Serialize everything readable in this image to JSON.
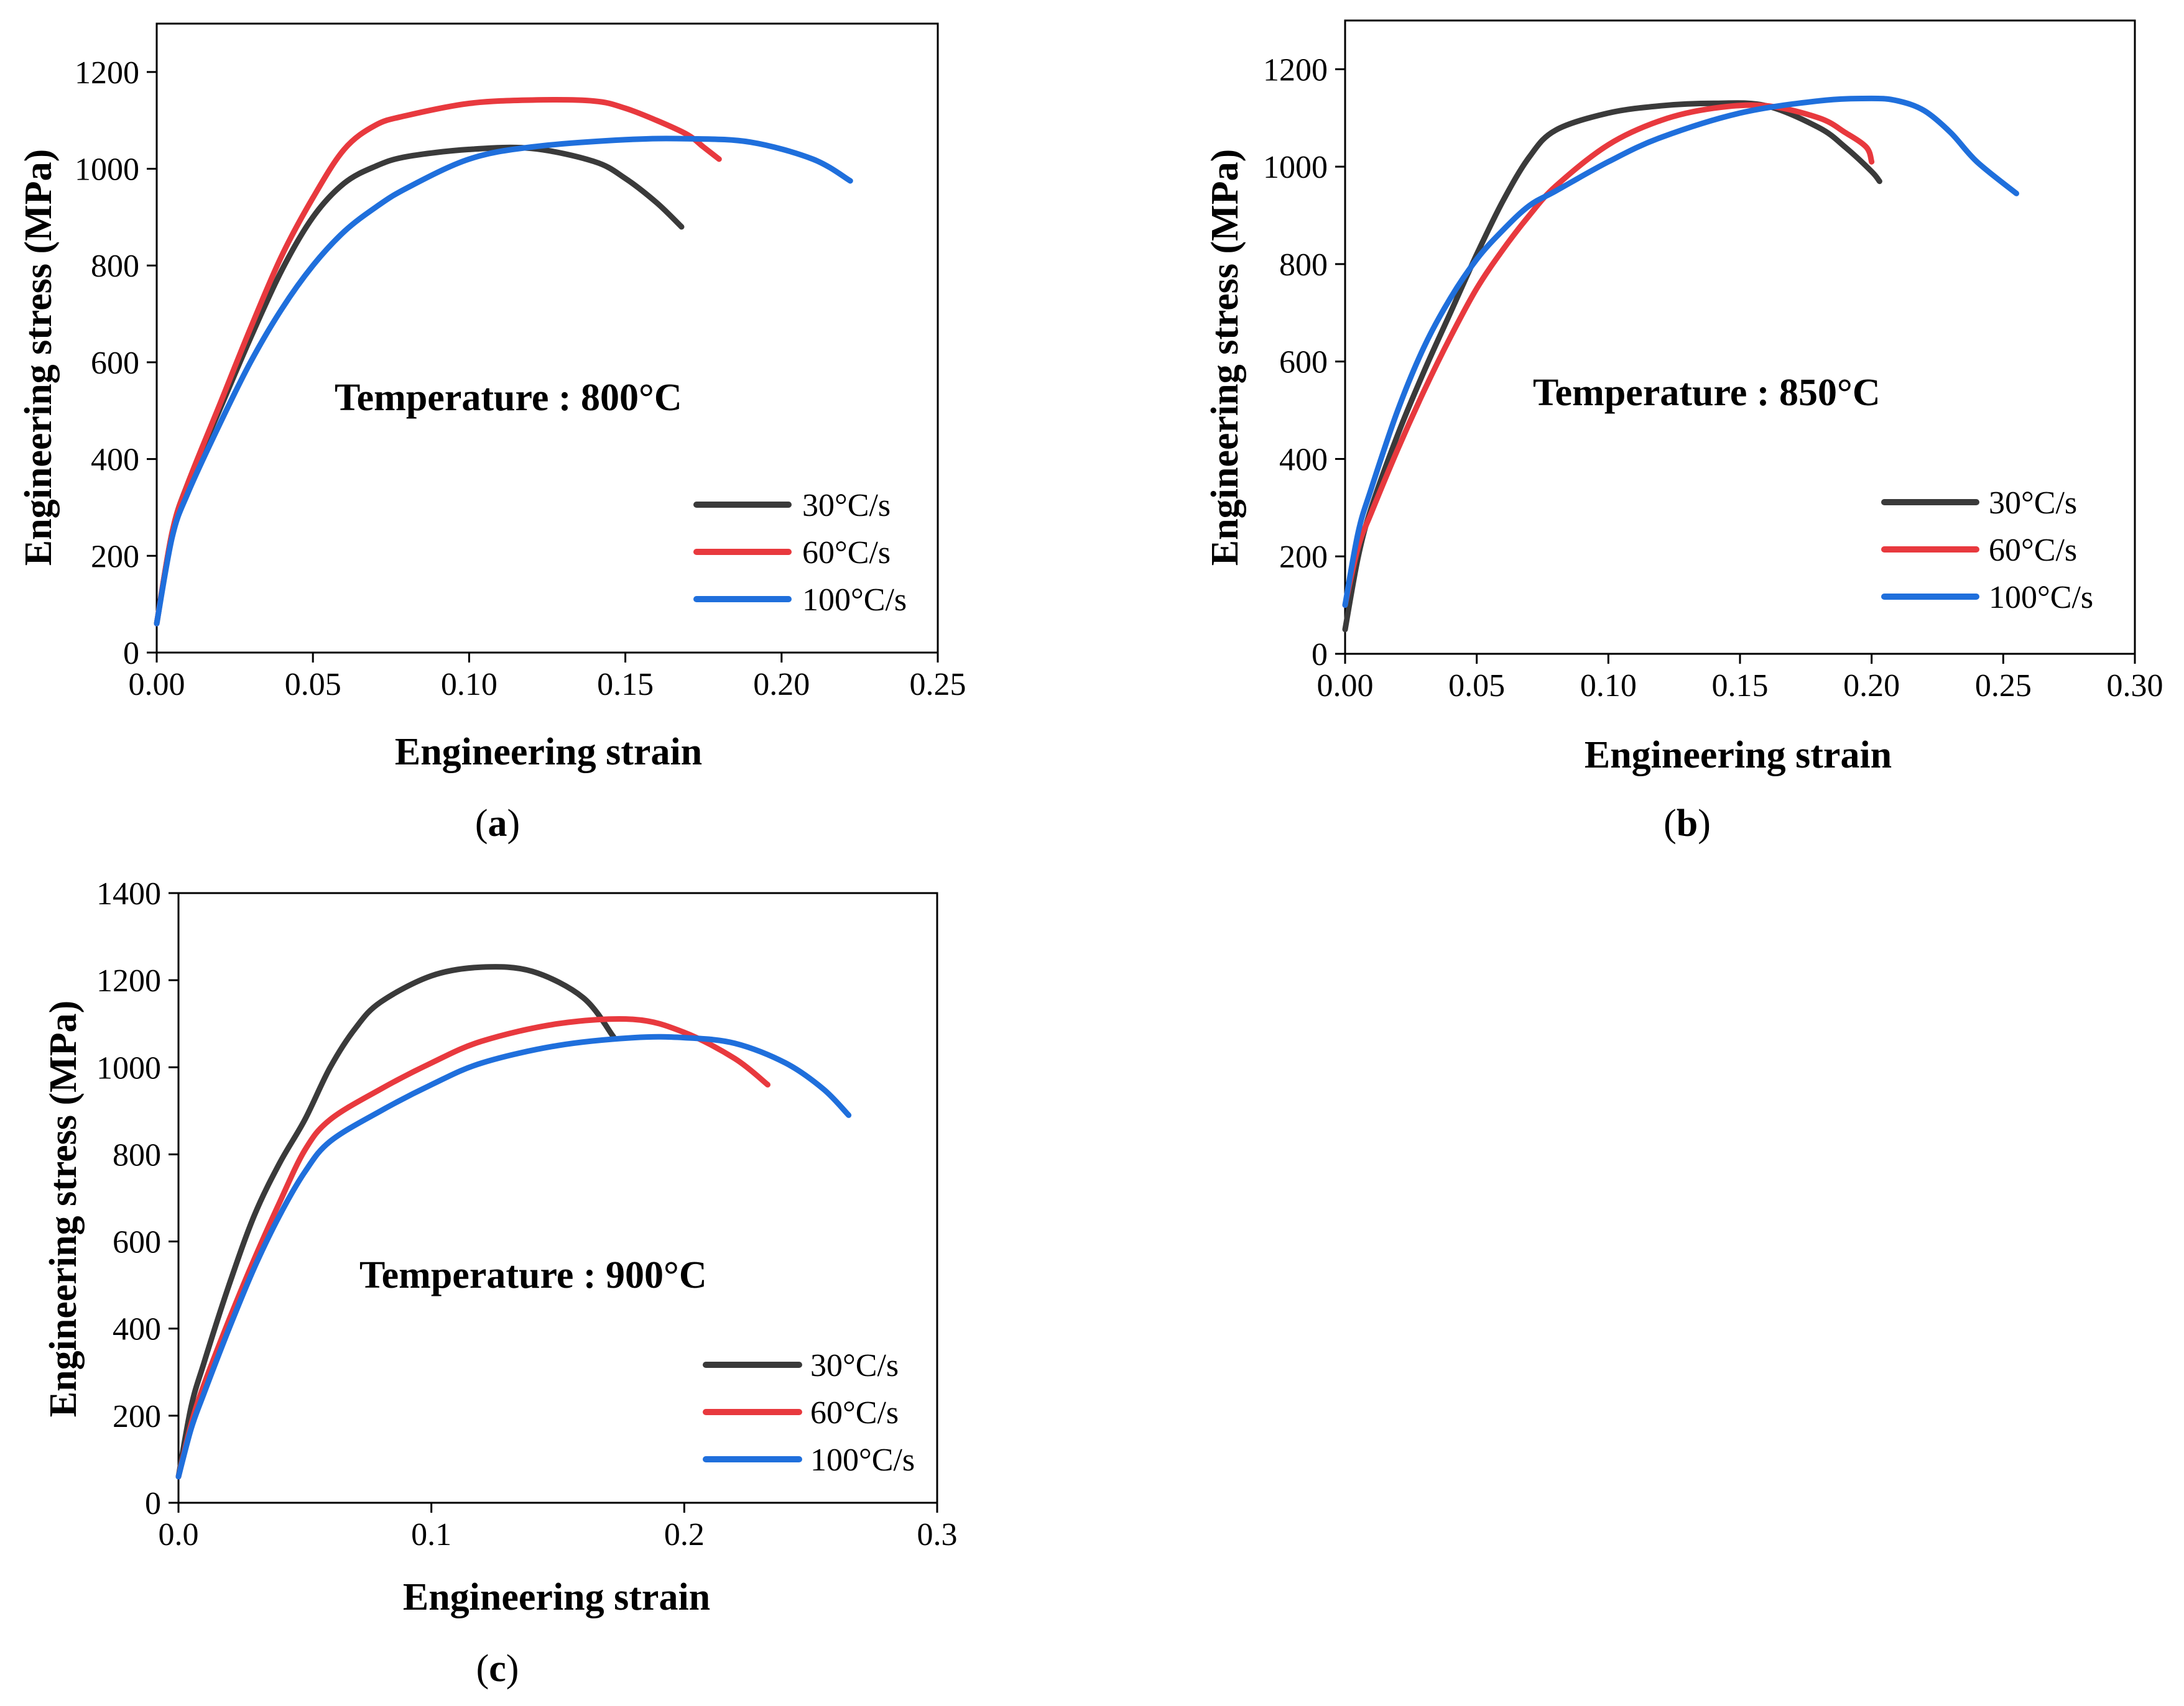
{
  "figure": {
    "panels": [
      {
        "id": "a",
        "label_open": "(",
        "label_letter": "a",
        "label_close": ")"
      },
      {
        "id": "b",
        "label_open": "(",
        "label_letter": "b",
        "label_close": ")"
      },
      {
        "id": "c",
        "label_open": "(",
        "label_letter": "c",
        "label_close": ")"
      }
    ]
  },
  "chart_data": [
    {
      "type": "line",
      "panel": "a",
      "xlabel": "Engineering strain",
      "ylabel": "Engineering stress (MPa)",
      "annotation": "Temperature : 800°C",
      "xlim": [
        0,
        0.25
      ],
      "ylim": [
        0,
        1300
      ],
      "xticks": [
        0.0,
        0.05,
        0.1,
        0.15,
        0.2,
        0.25
      ],
      "xtick_labels": [
        "0.00",
        "0.05",
        "0.10",
        "0.15",
        "0.20",
        "0.25"
      ],
      "yticks": [
        0,
        200,
        400,
        600,
        800,
        1000,
        1200
      ],
      "ytick_labels": [
        "0",
        "200",
        "400",
        "600",
        "800",
        "1000",
        "1200"
      ],
      "grid": false,
      "legend_position": "bottom-right",
      "series": [
        {
          "name": "30°C/s",
          "color": "#3a3a3a",
          "x": [
            0,
            0.005,
            0.01,
            0.02,
            0.03,
            0.04,
            0.05,
            0.06,
            0.07,
            0.08,
            0.1,
            0.12,
            0.14,
            0.15,
            0.16,
            0.168
          ],
          "y": [
            60,
            250,
            350,
            500,
            650,
            790,
            900,
            970,
            1005,
            1025,
            1040,
            1042,
            1015,
            980,
            930,
            880
          ]
        },
        {
          "name": "60°C/s",
          "color": "#e8393e",
          "x": [
            0,
            0.005,
            0.01,
            0.02,
            0.03,
            0.04,
            0.05,
            0.06,
            0.07,
            0.08,
            0.1,
            0.12,
            0.14,
            0.15,
            0.16,
            0.17,
            0.175,
            0.18
          ],
          "y": [
            60,
            250,
            350,
            510,
            670,
            820,
            940,
            1040,
            1090,
            1110,
            1135,
            1142,
            1140,
            1125,
            1100,
            1070,
            1045,
            1020
          ]
        },
        {
          "name": "100°C/s",
          "color": "#1f6fdc",
          "x": [
            0,
            0.005,
            0.01,
            0.02,
            0.03,
            0.04,
            0.05,
            0.06,
            0.07,
            0.08,
            0.1,
            0.12,
            0.15,
            0.17,
            0.19,
            0.21,
            0.222
          ],
          "y": [
            60,
            240,
            330,
            470,
            600,
            710,
            800,
            870,
            920,
            960,
            1020,
            1045,
            1060,
            1062,
            1055,
            1020,
            975
          ]
        }
      ]
    },
    {
      "type": "line",
      "panel": "b",
      "xlabel": "Engineering strain",
      "ylabel": "Engineering stress (MPa)",
      "annotation": "Temperature : 850°C",
      "xlim": [
        0,
        0.3
      ],
      "ylim": [
        0,
        1300
      ],
      "xticks": [
        0.0,
        0.05,
        0.1,
        0.15,
        0.2,
        0.25,
        0.3
      ],
      "xtick_labels": [
        "0.00",
        "0.05",
        "0.10",
        "0.15",
        "0.20",
        "0.25",
        "0.30"
      ],
      "yticks": [
        0,
        200,
        400,
        600,
        800,
        1000,
        1200
      ],
      "ytick_labels": [
        "0",
        "200",
        "400",
        "600",
        "800",
        "1000",
        "1200"
      ],
      "grid": false,
      "legend_position": "bottom-right",
      "series": [
        {
          "name": "30°C/s",
          "color": "#3a3a3a",
          "x": [
            0,
            0.005,
            0.01,
            0.02,
            0.03,
            0.04,
            0.05,
            0.06,
            0.07,
            0.08,
            0.1,
            0.12,
            0.14,
            0.16,
            0.18,
            0.19,
            0.2,
            0.203
          ],
          "y": [
            50,
            200,
            300,
            450,
            580,
            700,
            820,
            930,
            1020,
            1075,
            1110,
            1125,
            1130,
            1125,
            1080,
            1040,
            990,
            970
          ]
        },
        {
          "name": "60°C/s",
          "color": "#e8393e",
          "x": [
            0,
            0.005,
            0.01,
            0.02,
            0.03,
            0.04,
            0.05,
            0.06,
            0.07,
            0.08,
            0.1,
            0.12,
            0.14,
            0.16,
            0.18,
            0.19,
            0.198,
            0.2
          ],
          "y": [
            100,
            220,
            290,
            420,
            540,
            650,
            750,
            830,
            900,
            960,
            1045,
            1095,
            1120,
            1125,
            1100,
            1070,
            1040,
            1010
          ]
        },
        {
          "name": "100°C/s",
          "color": "#1f6fdc",
          "x": [
            0,
            0.005,
            0.01,
            0.02,
            0.03,
            0.04,
            0.05,
            0.06,
            0.07,
            0.08,
            0.1,
            0.12,
            0.15,
            0.18,
            0.2,
            0.21,
            0.22,
            0.23,
            0.24,
            0.255
          ],
          "y": [
            100,
            250,
            340,
            500,
            630,
            730,
            810,
            870,
            920,
            950,
            1010,
            1060,
            1110,
            1135,
            1140,
            1135,
            1115,
            1070,
            1010,
            945
          ]
        }
      ]
    },
    {
      "type": "line",
      "panel": "c",
      "xlabel": "Engineering strain",
      "ylabel": "Engineering stress (MPa)",
      "annotation": "Temperature : 900°C",
      "xlim": [
        0,
        0.3
      ],
      "ylim": [
        0,
        1400
      ],
      "xticks": [
        0.0,
        0.1,
        0.2,
        0.3
      ],
      "xtick_labels": [
        "0.0",
        "0.1",
        "0.2",
        "0.3"
      ],
      "yticks": [
        0,
        200,
        400,
        600,
        800,
        1000,
        1200,
        1400
      ],
      "ytick_labels": [
        "0",
        "200",
        "400",
        "600",
        "800",
        "1000",
        "1200",
        "1400"
      ],
      "grid": false,
      "legend_position": "bottom-right",
      "series": [
        {
          "name": "30°C/s",
          "color": "#3a3a3a",
          "x": [
            0,
            0.005,
            0.01,
            0.02,
            0.03,
            0.04,
            0.05,
            0.06,
            0.07,
            0.08,
            0.1,
            0.12,
            0.14,
            0.16,
            0.172
          ],
          "y": [
            60,
            220,
            320,
            500,
            660,
            780,
            880,
            1000,
            1090,
            1150,
            1210,
            1230,
            1220,
            1160,
            1070
          ]
        },
        {
          "name": "60°C/s",
          "color": "#e8393e",
          "x": [
            0,
            0.005,
            0.01,
            0.02,
            0.03,
            0.04,
            0.05,
            0.06,
            0.08,
            0.1,
            0.12,
            0.15,
            0.18,
            0.2,
            0.22,
            0.233
          ],
          "y": [
            60,
            180,
            270,
            420,
            560,
            690,
            810,
            880,
            950,
            1010,
            1060,
            1100,
            1110,
            1080,
            1020,
            960
          ]
        },
        {
          "name": "100°C/s",
          "color": "#1f6fdc",
          "x": [
            0,
            0.005,
            0.01,
            0.02,
            0.03,
            0.04,
            0.05,
            0.06,
            0.08,
            0.1,
            0.12,
            0.15,
            0.18,
            0.2,
            0.22,
            0.24,
            0.255,
            0.265
          ],
          "y": [
            60,
            170,
            250,
            400,
            540,
            660,
            760,
            830,
            900,
            960,
            1010,
            1050,
            1068,
            1068,
            1055,
            1010,
            950,
            890
          ]
        }
      ]
    }
  ]
}
